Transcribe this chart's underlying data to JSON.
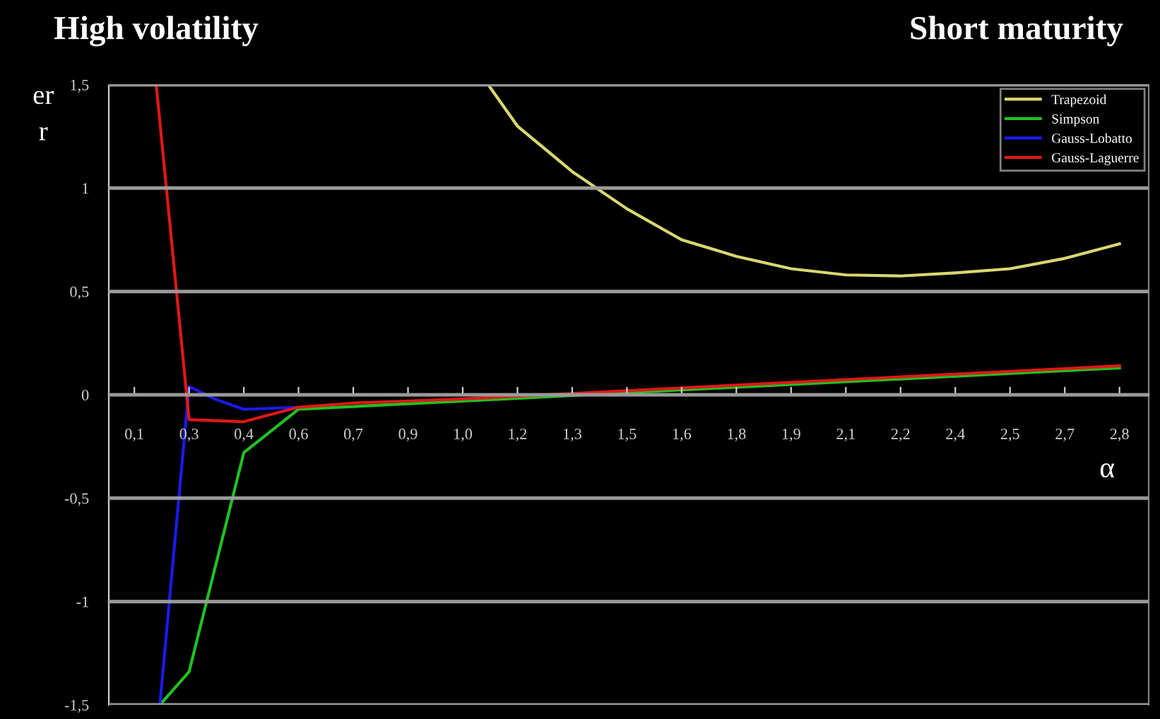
{
  "chart_data": {
    "type": "line",
    "title": "High volatility",
    "subtitle": "Short maturity",
    "xlabel": "α",
    "ylabel": "er\nr",
    "xlim": [
      0.03,
      2.88
    ],
    "ylim": [
      -1.5,
      1.5
    ],
    "xticks": [
      {
        "value": 0.1,
        "label": "0,1"
      },
      {
        "value": 0.25,
        "label": "0,3"
      },
      {
        "value": 0.4,
        "label": "0,4"
      },
      {
        "value": 0.55,
        "label": "0,6"
      },
      {
        "value": 0.7,
        "label": "0,7"
      },
      {
        "value": 0.85,
        "label": "0,9"
      },
      {
        "value": 1.0,
        "label": "1,0"
      },
      {
        "value": 1.15,
        "label": "1,2"
      },
      {
        "value": 1.3,
        "label": "1,3"
      },
      {
        "value": 1.45,
        "label": "1,5"
      },
      {
        "value": 1.6,
        "label": "1,6"
      },
      {
        "value": 1.75,
        "label": "1,8"
      },
      {
        "value": 1.9,
        "label": "1,9"
      },
      {
        "value": 2.05,
        "label": "2,1"
      },
      {
        "value": 2.2,
        "label": "2,2"
      },
      {
        "value": 2.35,
        "label": "2,4"
      },
      {
        "value": 2.5,
        "label": "2,5"
      },
      {
        "value": 2.65,
        "label": "2,7"
      },
      {
        "value": 2.8,
        "label": "2,8"
      }
    ],
    "yticks": [
      {
        "value": -1.5,
        "label": "-1,5"
      },
      -1,
      {
        "value": -0.5,
        "label": "-0,5"
      },
      0,
      {
        "value": 0.5,
        "label": "0,5"
      },
      1,
      {
        "value": 1.5,
        "label": "1,5"
      }
    ],
    "grid": "y",
    "legend": "top right",
    "series": [
      {
        "name": "Trapezoid",
        "color": "#d8d870",
        "x": [
          1.07,
          1.15,
          1.3,
          1.45,
          1.6,
          1.75,
          1.9,
          2.05,
          2.2,
          2.35,
          2.5,
          2.65,
          2.8
        ],
        "values": [
          1.5,
          1.3,
          1.08,
          0.9,
          0.75,
          0.67,
          0.61,
          0.58,
          0.575,
          0.59,
          0.61,
          0.66,
          0.73
        ]
      },
      {
        "name": "Simpson",
        "color": "#22c022",
        "x": [
          0.17,
          0.25,
          0.4,
          0.55,
          2.8
        ],
        "values": [
          -1.5,
          -1.34,
          -0.28,
          -0.07,
          0.13
        ]
      },
      {
        "name": "Gauss-Lobatto",
        "color": "#1a1aee",
        "x": [
          0.17,
          0.25,
          0.32,
          0.4,
          0.55
        ],
        "values": [
          -1.5,
          0.04,
          -0.02,
          -0.07,
          -0.06
        ]
      },
      {
        "name": "Gauss-Laguerre",
        "color": "#e01818",
        "x": [
          0.16,
          0.25,
          0.4,
          0.55,
          0.7,
          0.85,
          1.0,
          2.8
        ],
        "values": [
          1.5,
          -0.12,
          -0.13,
          -0.06,
          -0.04,
          -0.03,
          -0.02,
          0.14
        ]
      }
    ]
  }
}
